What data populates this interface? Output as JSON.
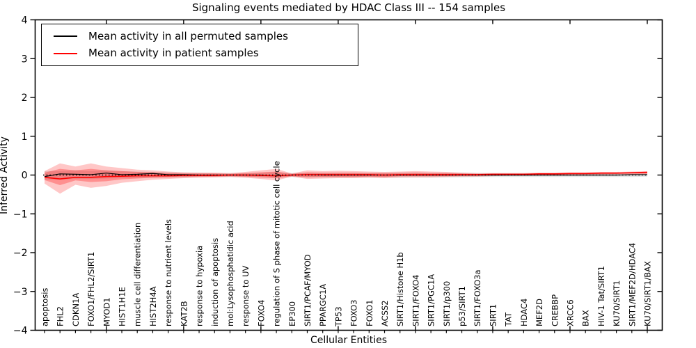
{
  "figure": {
    "title": "Signaling events mediated by HDAC Class III -- 154 samples",
    "background_color": "#ffffff",
    "axis_color": "#000000"
  },
  "legend": {
    "position": "upper left",
    "items": [
      {
        "label": "Mean activity in all permuted samples",
        "color": "#000000"
      },
      {
        "label": "Mean activity in patient samples",
        "color": "#ff0000"
      }
    ]
  },
  "chart_data": {
    "type": "line",
    "title": "Signaling events mediated by HDAC Class III -- 154 samples",
    "xlabel": "Cellular Entities",
    "ylabel": "Inferred Activity",
    "ylim": [
      -4,
      4
    ],
    "yticks": [
      4,
      3,
      2,
      1,
      0,
      -1,
      -2,
      -3,
      -4
    ],
    "ytick_labels": [
      "4",
      "3",
      "2",
      "1",
      "0",
      "−1",
      "−2",
      "−3",
      "−4"
    ],
    "grid": false,
    "legend_position": "upper left",
    "zero_line": {
      "y": 0,
      "style": "dotted",
      "color": "#000000"
    },
    "categories": [
      "apoptosis",
      "FHL2",
      "CDKN1A",
      "FOXO1/FHL2/SIRT1",
      "MYOD1",
      "HIST1H1E",
      "muscle cell differentiation",
      "HIST2H4A",
      "response to nutrient levels",
      "KAT2B",
      "response to hypoxia",
      "induction of apoptosis",
      "mol:Lysophosphatidic acid",
      "response to UV",
      "FOXO4",
      "regulation of S phase of mitotic cell cycle",
      "EP300",
      "SIRT1/PCAF/MYOD",
      "PPARGC1A",
      "TP53",
      "FOXO3",
      "FOXO1",
      "ACSS2",
      "SIRT1/Histone H1b",
      "SIRT1/FOXO4",
      "SIRT1/PGC1A",
      "SIRT1/p300",
      "p53/SIRT1",
      "SIRT1/FOXO3a",
      "SIRT1",
      "TAT",
      "HDAC4",
      "MEF2D",
      "CREBBP",
      "XRCC6",
      "BAX",
      "HIV-1 Tat/SIRT1",
      "KU70/SIRT1",
      "SIRT1/MEF2D/HDAC4",
      "KU70/SIRT1/BAX"
    ],
    "series": [
      {
        "name": "Mean activity in all permuted samples",
        "color": "#000000",
        "linewidth": 1.2,
        "values": [
          -0.04,
          0.03,
          0.02,
          0.01,
          0.05,
          0.01,
          0.02,
          0.04,
          0.01,
          0.01,
          0.0,
          0.0,
          0.0,
          0.0,
          0.0,
          -0.02,
          0.0,
          0.01,
          0.0,
          0.0,
          0.0,
          0.0,
          0.0,
          0.0,
          0.0,
          0.0,
          0.0,
          0.0,
          0.0,
          0.0,
          0.0,
          0.0,
          0.0,
          0.0,
          0.0,
          0.0,
          0.0,
          0.0,
          0.01,
          0.01
        ]
      },
      {
        "name": "Mean activity in patient samples",
        "color": "#ff0000",
        "linewidth": 1.6,
        "values": [
          -0.06,
          -0.1,
          -0.06,
          -0.06,
          -0.04,
          -0.03,
          -0.02,
          -0.02,
          -0.02,
          -0.01,
          -0.01,
          -0.01,
          0.0,
          0.0,
          -0.01,
          -0.02,
          0.0,
          0.01,
          0.01,
          0.01,
          0.01,
          0.01,
          0.0,
          0.01,
          0.01,
          0.01,
          0.01,
          0.01,
          0.01,
          0.02,
          0.02,
          0.02,
          0.03,
          0.03,
          0.04,
          0.04,
          0.05,
          0.05,
          0.06,
          0.07
        ]
      }
    ],
    "bands": [
      {
        "name": "permuted-samples-spread",
        "color": "rgba(0,0,0,0.10)",
        "upper": [
          0.1,
          0.1,
          0.12,
          0.1,
          0.12,
          0.1,
          0.09,
          0.08,
          0.07,
          0.06,
          0.06,
          0.05,
          0.05,
          0.05,
          0.06,
          0.08,
          0.05,
          0.06,
          0.06,
          0.06,
          0.06,
          0.06,
          0.06,
          0.07,
          0.07,
          0.06,
          0.06,
          0.06,
          0.05,
          0.05,
          0.05,
          0.05,
          0.05,
          0.05,
          0.05,
          0.05,
          0.05,
          0.05,
          0.05,
          0.06
        ],
        "lower": [
          -0.12,
          -0.12,
          -0.1,
          -0.1,
          -0.09,
          -0.08,
          -0.08,
          -0.07,
          -0.06,
          -0.06,
          -0.05,
          -0.05,
          -0.05,
          -0.05,
          -0.06,
          -0.07,
          -0.05,
          -0.06,
          -0.06,
          -0.06,
          -0.06,
          -0.06,
          -0.06,
          -0.07,
          -0.06,
          -0.06,
          -0.06,
          -0.06,
          -0.05,
          -0.05,
          -0.05,
          -0.05,
          -0.05,
          -0.05,
          -0.05,
          -0.05,
          -0.05,
          -0.05,
          -0.05,
          -0.04
        ]
      },
      {
        "name": "patient-samples-spread-outer",
        "color": "rgba(255,0,0,0.22)",
        "upper": [
          0.1,
          0.3,
          0.22,
          0.3,
          0.22,
          0.18,
          0.14,
          0.12,
          0.09,
          0.07,
          0.06,
          0.06,
          0.05,
          0.08,
          0.12,
          0.16,
          0.04,
          0.12,
          0.1,
          0.11,
          0.1,
          0.09,
          0.08,
          0.09,
          0.1,
          0.09,
          0.08,
          0.06,
          0.05,
          0.05,
          0.05,
          0.05,
          0.06,
          0.06,
          0.07,
          0.07,
          0.08,
          0.08,
          0.09,
          0.1
        ],
        "lower": [
          -0.22,
          -0.48,
          -0.25,
          -0.33,
          -0.28,
          -0.2,
          -0.16,
          -0.12,
          -0.1,
          -0.08,
          -0.07,
          -0.06,
          -0.05,
          -0.07,
          -0.1,
          -0.14,
          -0.04,
          -0.1,
          -0.09,
          -0.08,
          -0.08,
          -0.07,
          -0.08,
          -0.06,
          -0.06,
          -0.06,
          -0.05,
          -0.04,
          -0.04,
          -0.03,
          -0.02,
          -0.02,
          -0.01,
          -0.01,
          0.0,
          0.0,
          0.01,
          0.02,
          0.02,
          0.03
        ]
      },
      {
        "name": "patient-samples-spread-inner",
        "color": "rgba(255,0,0,0.28)",
        "upper": [
          0.06,
          0.16,
          0.12,
          0.16,
          0.12,
          0.1,
          0.08,
          0.07,
          0.05,
          0.04,
          0.04,
          0.04,
          0.03,
          0.05,
          0.07,
          0.09,
          0.03,
          0.07,
          0.06,
          0.06,
          0.06,
          0.05,
          0.05,
          0.05,
          0.06,
          0.05,
          0.05,
          0.04,
          0.03,
          0.03,
          0.03,
          0.03,
          0.04,
          0.04,
          0.05,
          0.05,
          0.06,
          0.06,
          0.07,
          0.08
        ],
        "lower": [
          -0.13,
          -0.26,
          -0.14,
          -0.18,
          -0.16,
          -0.11,
          -0.09,
          -0.07,
          -0.06,
          -0.05,
          -0.04,
          -0.04,
          -0.03,
          -0.04,
          -0.06,
          -0.08,
          -0.03,
          -0.06,
          -0.05,
          -0.05,
          -0.05,
          -0.04,
          -0.05,
          -0.03,
          -0.03,
          -0.03,
          -0.03,
          -0.02,
          -0.02,
          -0.01,
          0.0,
          0.0,
          0.01,
          0.01,
          0.02,
          0.02,
          0.03,
          0.03,
          0.04,
          0.04
        ]
      }
    ]
  }
}
